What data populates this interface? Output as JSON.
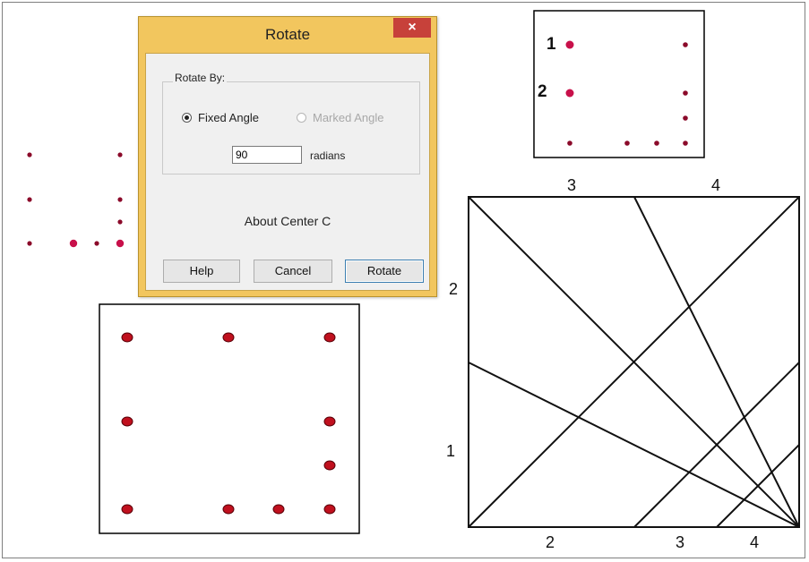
{
  "dialog": {
    "title": "Rotate",
    "close_glyph": "×",
    "group_title": "Rotate By:",
    "option_fixed": "Fixed Angle",
    "option_marked": "Marked Angle",
    "angle_value": "90",
    "units": "radians",
    "about_text": "About Center C",
    "help_label": "Help",
    "cancel_label": "Cancel",
    "rotate_label": "Rotate",
    "selected_option": "Fixed Angle"
  },
  "top_right_figure": {
    "label_1": "1",
    "label_2": "2"
  },
  "square_figure": {
    "top_label_3": "3",
    "top_label_4": "4",
    "left_label_2": "2",
    "left_label_1": "1",
    "bottom_label_2": "2",
    "bottom_label_3": "3",
    "bottom_label_4": "4"
  },
  "colors": {
    "dot": "#8b0a2a",
    "dot_highlight": "#c8104a",
    "dialog_frame": "#f2c65e",
    "close_button": "#c7413a"
  }
}
